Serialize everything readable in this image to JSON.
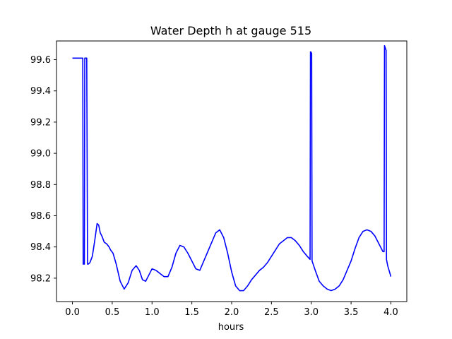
{
  "chart_data": {
    "type": "line",
    "title": "Water Depth h at gauge 515",
    "xlabel": "hours",
    "ylabel": "",
    "xlim": [
      -0.2,
      4.2
    ],
    "ylim": [
      98.05,
      99.72
    ],
    "grid": false,
    "xticks": [
      0.0,
      0.5,
      1.0,
      1.5,
      2.0,
      2.5,
      3.0,
      3.5,
      4.0
    ],
    "xtick_labels": [
      "0.0",
      "0.5",
      "1.0",
      "1.5",
      "2.0",
      "2.5",
      "3.0",
      "3.5",
      "4.0"
    ],
    "yticks": [
      98.2,
      98.4,
      98.6,
      98.8,
      99.0,
      99.2,
      99.4,
      99.6
    ],
    "ytick_labels": [
      "98.2",
      "98.4",
      "98.6",
      "98.8",
      "99.0",
      "99.2",
      "99.4",
      "99.6"
    ],
    "series": [
      {
        "color": "#0000ff",
        "x": [
          0.0,
          0.13,
          0.135,
          0.15,
          0.155,
          0.18,
          0.19,
          0.2,
          0.22,
          0.25,
          0.28,
          0.31,
          0.33,
          0.35,
          0.37,
          0.4,
          0.43,
          0.46,
          0.48,
          0.51,
          0.55,
          0.6,
          0.65,
          0.7,
          0.75,
          0.8,
          0.84,
          0.88,
          0.92,
          0.96,
          1.0,
          1.05,
          1.1,
          1.15,
          1.2,
          1.25,
          1.3,
          1.35,
          1.4,
          1.45,
          1.5,
          1.55,
          1.6,
          1.65,
          1.7,
          1.75,
          1.8,
          1.85,
          1.9,
          1.95,
          2.0,
          2.05,
          2.1,
          2.15,
          2.2,
          2.25,
          2.3,
          2.35,
          2.4,
          2.45,
          2.5,
          2.55,
          2.6,
          2.65,
          2.7,
          2.75,
          2.8,
          2.85,
          2.9,
          2.95,
          2.985,
          2.99,
          2.995,
          3.005,
          3.01,
          3.05,
          3.1,
          3.15,
          3.2,
          3.25,
          3.3,
          3.35,
          3.4,
          3.45,
          3.5,
          3.55,
          3.6,
          3.65,
          3.7,
          3.75,
          3.8,
          3.85,
          3.9,
          3.915,
          3.92,
          3.94,
          3.945,
          3.96,
          4.0
        ],
        "y": [
          99.61,
          99.61,
          98.29,
          98.29,
          99.61,
          99.61,
          98.29,
          98.29,
          98.3,
          98.34,
          98.44,
          98.55,
          98.54,
          98.49,
          98.47,
          98.43,
          98.42,
          98.4,
          98.38,
          98.36,
          98.29,
          98.18,
          98.13,
          98.17,
          98.25,
          98.28,
          98.25,
          98.19,
          98.18,
          98.22,
          98.26,
          98.25,
          98.23,
          98.21,
          98.21,
          98.27,
          98.36,
          98.41,
          98.4,
          98.36,
          98.31,
          98.26,
          98.25,
          98.31,
          98.37,
          98.43,
          98.49,
          98.51,
          98.46,
          98.36,
          98.24,
          98.15,
          98.12,
          98.12,
          98.15,
          98.19,
          98.22,
          98.25,
          98.27,
          98.3,
          98.34,
          98.38,
          98.42,
          98.44,
          98.46,
          98.46,
          98.44,
          98.41,
          98.37,
          98.34,
          98.32,
          99.65,
          99.65,
          99.64,
          98.31,
          98.25,
          98.18,
          98.15,
          98.13,
          98.12,
          98.13,
          98.15,
          98.19,
          98.25,
          98.31,
          98.39,
          98.46,
          98.5,
          98.51,
          98.5,
          98.47,
          98.42,
          98.37,
          98.37,
          99.69,
          99.66,
          98.32,
          98.28,
          98.21
        ]
      }
    ]
  }
}
